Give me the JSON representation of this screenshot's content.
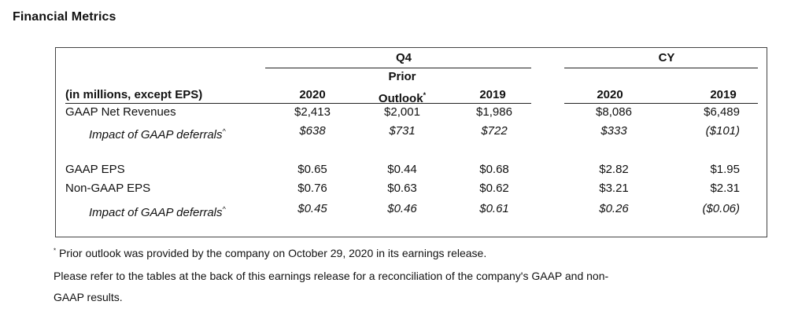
{
  "page": {
    "title": "Financial Metrics"
  },
  "table": {
    "header": {
      "q4_group": "Q4",
      "cy_group": "CY",
      "units_label": "(in millions, except EPS)",
      "col_q4_2020": "2020",
      "col_prior_line1": "Prior",
      "col_prior_line2": "Outlook",
      "col_prior_mark": "*",
      "col_q4_2019": "2019",
      "col_cy_2020": "2020",
      "col_cy_2019": "2019"
    },
    "rows": [
      {
        "label": "GAAP Net Revenues",
        "q4_2020": "$2,413",
        "prior": "$2,001",
        "q4_2019": "$1,986",
        "cy_2020": "$8,086",
        "cy_2019": "$6,489"
      },
      {
        "label": "Impact of GAAP deferrals",
        "mark": "^",
        "q4_2020": "$638",
        "prior": "$731",
        "q4_2019": "$722",
        "cy_2020": "$333",
        "cy_2019": "($101)"
      },
      {
        "label": "GAAP EPS",
        "q4_2020": "$0.65",
        "prior": "$0.44",
        "q4_2019": "$0.68",
        "cy_2020": "$2.82",
        "cy_2019": "$1.95"
      },
      {
        "label": "Non-GAAP EPS",
        "q4_2020": "$0.76",
        "prior": "$0.63",
        "q4_2019": "$0.62",
        "cy_2020": "$3.21",
        "cy_2019": "$2.31"
      },
      {
        "label": "Impact of GAAP deferrals",
        "mark": "^",
        "q4_2020": "$0.45",
        "prior": "$0.46",
        "q4_2019": "$0.61",
        "cy_2020": "$0.26",
        "cy_2019": "($0.06)"
      }
    ]
  },
  "footnotes": {
    "mark": "*",
    "prior_outlook": "Prior outlook was provided by the company on October 29, 2020 in its earnings release.",
    "refer_line1": "Please refer to the tables at the back of this earnings release for a reconciliation of the company's GAAP and non-",
    "refer_line2": "GAAP results."
  }
}
